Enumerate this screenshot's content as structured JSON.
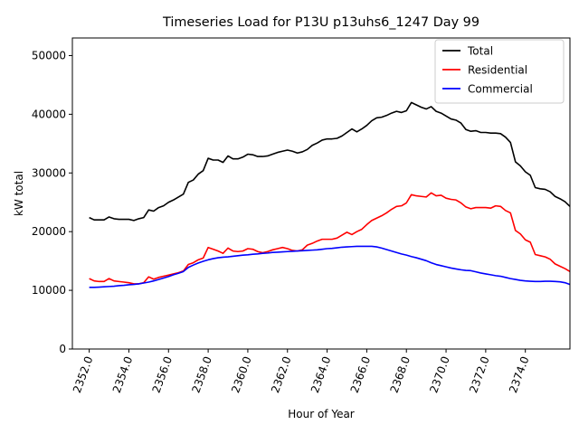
{
  "chart_data": {
    "type": "line",
    "title": "Timeseries Load for P13U p13uhs6_1247  Day 99",
    "xlabel": "Hour of Year",
    "ylabel": "kW total",
    "xlim": [
      2351.15,
      2376.25
    ],
    "ylim": [
      0,
      53000
    ],
    "grid": false,
    "legend_position": "top-right",
    "x_ticks": [
      2352,
      2354,
      2356,
      2358,
      2360,
      2362,
      2364,
      2366,
      2368,
      2370,
      2372,
      2374
    ],
    "x_tick_labels": [
      "2352.0",
      "2354.0",
      "2356.0",
      "2358.0",
      "2360.0",
      "2362.0",
      "2364.0",
      "2366.0",
      "2368.0",
      "2370.0",
      "2372.0",
      "2374.0"
    ],
    "y_ticks": [
      0,
      10000,
      20000,
      30000,
      40000,
      50000
    ],
    "y_tick_labels": [
      "0",
      "10000",
      "20000",
      "30000",
      "40000",
      "50000"
    ],
    "x_start": 2352.0,
    "x_step": 0.25,
    "series": [
      {
        "name": "Total",
        "color": "#000000",
        "values": [
          22400,
          22000,
          22000,
          22000,
          22500,
          22200,
          22100,
          22100,
          22100,
          21900,
          22200,
          22400,
          23700,
          23500,
          24100,
          24400,
          25000,
          25400,
          25900,
          26400,
          28400,
          28800,
          29800,
          30400,
          32500,
          32200,
          32200,
          31800,
          32900,
          32400,
          32400,
          32700,
          33200,
          33100,
          32800,
          32800,
          32900,
          33200,
          33500,
          33700,
          33900,
          33700,
          33400,
          33600,
          34000,
          34700,
          35100,
          35600,
          35800,
          35800,
          35900,
          36300,
          36900,
          37500,
          37000,
          37500,
          38100,
          38900,
          39400,
          39500,
          39800,
          40200,
          40500,
          40300,
          40600,
          42000,
          41600,
          41200,
          40900,
          41300,
          40500,
          40200,
          39700,
          39200,
          39000,
          38500,
          37400,
          37100,
          37200,
          36900,
          36900,
          36800,
          36800,
          36700,
          36100,
          35200,
          31900,
          31200,
          30200,
          29600,
          27500,
          27300,
          27200,
          26800,
          26000,
          25600,
          25100,
          24300
        ]
      },
      {
        "name": "Residential",
        "color": "#ff0000",
        "values": [
          12000,
          11600,
          11500,
          11500,
          12000,
          11600,
          11500,
          11400,
          11300,
          11100,
          11100,
          11300,
          12300,
          11900,
          12200,
          12400,
          12600,
          12800,
          13000,
          13300,
          14400,
          14700,
          15200,
          15500,
          17300,
          17000,
          16700,
          16300,
          17200,
          16700,
          16600,
          16700,
          17100,
          17000,
          16600,
          16400,
          16600,
          16900,
          17100,
          17300,
          17100,
          16800,
          16700,
          16900,
          17700,
          18000,
          18400,
          18700,
          18700,
          18700,
          18900,
          19400,
          19900,
          19500,
          20000,
          20400,
          21200,
          21900,
          22300,
          22700,
          23200,
          23800,
          24300,
          24400,
          24900,
          26300,
          26100,
          26000,
          25900,
          26600,
          26100,
          26200,
          25700,
          25500,
          25400,
          24900,
          24200,
          23900,
          24100,
          24100,
          24100,
          24000,
          24400,
          24300,
          23600,
          23200,
          20200,
          19600,
          18600,
          18200,
          16100,
          15900,
          15700,
          15300,
          14500,
          14100,
          13700,
          13200
        ]
      },
      {
        "name": "Commercial",
        "color": "#0000ff",
        "values": [
          10500,
          10500,
          10550,
          10600,
          10650,
          10700,
          10800,
          10850,
          10950,
          11000,
          11100,
          11250,
          11400,
          11600,
          11850,
          12100,
          12350,
          12650,
          12900,
          13200,
          13900,
          14300,
          14650,
          14950,
          15200,
          15400,
          15550,
          15650,
          15700,
          15800,
          15900,
          16000,
          16050,
          16150,
          16200,
          16300,
          16350,
          16450,
          16500,
          16550,
          16600,
          16650,
          16700,
          16750,
          16800,
          16850,
          16900,
          17000,
          17100,
          17150,
          17250,
          17350,
          17400,
          17450,
          17500,
          17500,
          17500,
          17500,
          17400,
          17200,
          16950,
          16700,
          16450,
          16200,
          16000,
          15750,
          15550,
          15300,
          15050,
          14700,
          14400,
          14200,
          14000,
          13800,
          13650,
          13500,
          13400,
          13350,
          13150,
          12950,
          12800,
          12650,
          12500,
          12400,
          12200,
          12000,
          11850,
          11700,
          11600,
          11550,
          11500,
          11500,
          11550,
          11550,
          11500,
          11450,
          11300,
          11000
        ]
      }
    ]
  }
}
